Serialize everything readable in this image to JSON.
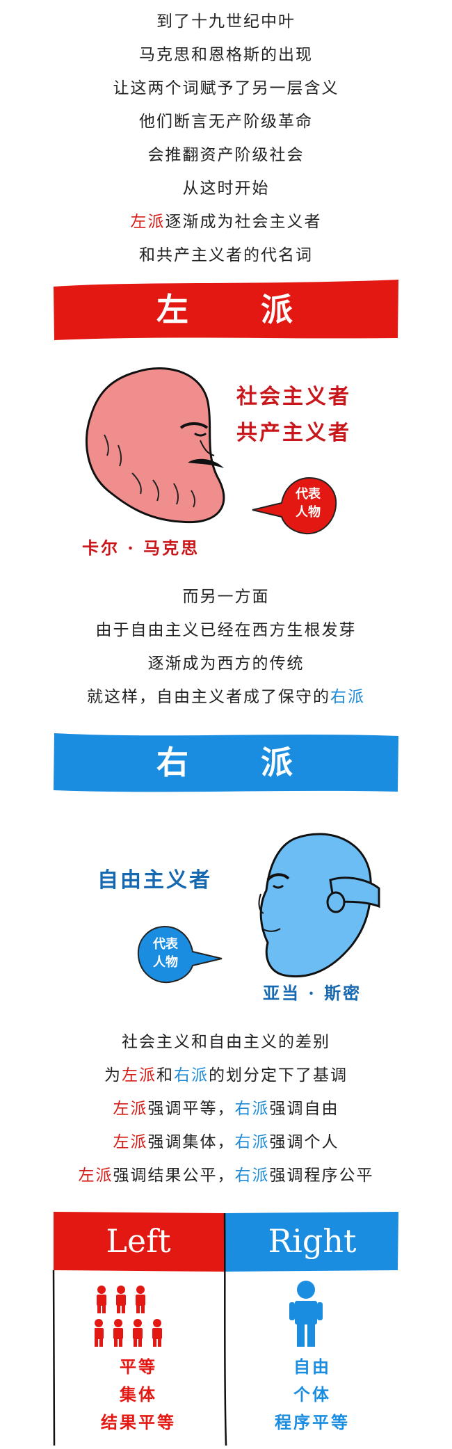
{
  "intro": {
    "lines": [
      [
        {
          "t": "到了十九世纪中叶",
          "c": ""
        }
      ],
      [
        {
          "t": "马克思和恩格斯的出现",
          "c": ""
        }
      ],
      [
        {
          "t": "让这两个词赋予了另一层含义",
          "c": ""
        }
      ],
      [
        {
          "t": "他们断言无产阶级革命",
          "c": ""
        }
      ],
      [
        {
          "t": "会推翻资产阶级社会",
          "c": ""
        }
      ],
      [
        {
          "t": "从这时开始",
          "c": ""
        }
      ],
      [
        {
          "t": "左派",
          "c": "red"
        },
        {
          "t": "逐渐成为社会主义者",
          "c": ""
        }
      ],
      [
        {
          "t": "和共产主义者的代名词",
          "c": ""
        }
      ]
    ]
  },
  "left_banner": {
    "title": "左　　派",
    "color": "#e41812"
  },
  "left_panel": {
    "roles": [
      "社会主义者",
      "共产主义者"
    ],
    "bubble": [
      "代表",
      "人物"
    ],
    "person": "卡尔 · 马克思",
    "color": "#c9161a"
  },
  "middle": {
    "lines": [
      [
        {
          "t": "而另一方面",
          "c": ""
        }
      ],
      [
        {
          "t": "由于自由主义已经在西方生根发芽",
          "c": ""
        }
      ],
      [
        {
          "t": "逐渐成为西方的传统",
          "c": ""
        }
      ],
      [
        {
          "t": "就这样，自由主义者成了保守的",
          "c": ""
        },
        {
          "t": "右派",
          "c": "blue"
        }
      ]
    ]
  },
  "right_banner": {
    "title": "右　　派",
    "color": "#1a8de0"
  },
  "right_panel": {
    "role": "自由主义者",
    "bubble": [
      "代表",
      "人物"
    ],
    "person": "亚当 · 斯密",
    "color": "#1668b0"
  },
  "compare": {
    "lines": [
      [
        {
          "t": "社会主义和自由主义的差别",
          "c": ""
        }
      ],
      [
        {
          "t": "为",
          "c": ""
        },
        {
          "t": "左派",
          "c": "red"
        },
        {
          "t": "和",
          "c": ""
        },
        {
          "t": "右派",
          "c": "blue"
        },
        {
          "t": "的划分定下了基调",
          "c": ""
        }
      ],
      [
        {
          "t": "左派",
          "c": "red"
        },
        {
          "t": "强调平等，",
          "c": ""
        },
        {
          "t": "右派",
          "c": "blue"
        },
        {
          "t": "强调自由",
          "c": ""
        }
      ],
      [
        {
          "t": "左派",
          "c": "red"
        },
        {
          "t": "强调集体，",
          "c": ""
        },
        {
          "t": "右派",
          "c": "blue"
        },
        {
          "t": "强调个人",
          "c": ""
        }
      ],
      [
        {
          "t": "左派",
          "c": "red"
        },
        {
          "t": "强调结果公平，",
          "c": ""
        },
        {
          "t": "右派",
          "c": "blue"
        },
        {
          "t": "强调程序公平",
          "c": ""
        }
      ]
    ]
  },
  "table": {
    "left_header": "Left",
    "right_header": "Right",
    "left_items": [
      "平等",
      "集体",
      "结果平等"
    ],
    "right_items": [
      "自由",
      "个体",
      "程序平等"
    ],
    "left_color": "#e41812",
    "right_color": "#1a8de0"
  }
}
